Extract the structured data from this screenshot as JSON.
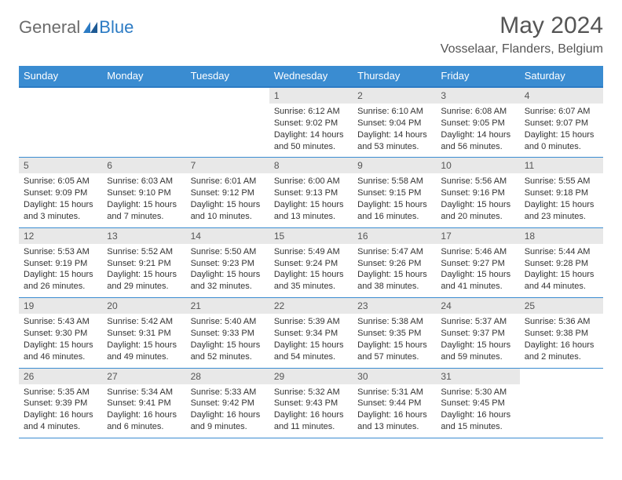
{
  "logo": {
    "general": "General",
    "blue": "Blue"
  },
  "title": "May 2024",
  "location": "Vosselaar, Flanders, Belgium",
  "dow": [
    "Sunday",
    "Monday",
    "Tuesday",
    "Wednesday",
    "Thursday",
    "Friday",
    "Saturday"
  ],
  "colors": {
    "header_bar": "#3a8cd1",
    "header_border": "#2c7bc4",
    "day_num_bg": "#e8e8e8",
    "text": "#333333",
    "title_text": "#555555",
    "logo_gray": "#6b6b6b",
    "logo_blue": "#2c7bc4"
  },
  "weeks": [
    [
      {
        "empty": true
      },
      {
        "empty": true
      },
      {
        "empty": true
      },
      {
        "n": "1",
        "sr": "Sunrise: 6:12 AM",
        "ss": "Sunset: 9:02 PM",
        "dl1": "Daylight: 14 hours",
        "dl2": "and 50 minutes."
      },
      {
        "n": "2",
        "sr": "Sunrise: 6:10 AM",
        "ss": "Sunset: 9:04 PM",
        "dl1": "Daylight: 14 hours",
        "dl2": "and 53 minutes."
      },
      {
        "n": "3",
        "sr": "Sunrise: 6:08 AM",
        "ss": "Sunset: 9:05 PM",
        "dl1": "Daylight: 14 hours",
        "dl2": "and 56 minutes."
      },
      {
        "n": "4",
        "sr": "Sunrise: 6:07 AM",
        "ss": "Sunset: 9:07 PM",
        "dl1": "Daylight: 15 hours",
        "dl2": "and 0 minutes."
      }
    ],
    [
      {
        "n": "5",
        "sr": "Sunrise: 6:05 AM",
        "ss": "Sunset: 9:09 PM",
        "dl1": "Daylight: 15 hours",
        "dl2": "and 3 minutes."
      },
      {
        "n": "6",
        "sr": "Sunrise: 6:03 AM",
        "ss": "Sunset: 9:10 PM",
        "dl1": "Daylight: 15 hours",
        "dl2": "and 7 minutes."
      },
      {
        "n": "7",
        "sr": "Sunrise: 6:01 AM",
        "ss": "Sunset: 9:12 PM",
        "dl1": "Daylight: 15 hours",
        "dl2": "and 10 minutes."
      },
      {
        "n": "8",
        "sr": "Sunrise: 6:00 AM",
        "ss": "Sunset: 9:13 PM",
        "dl1": "Daylight: 15 hours",
        "dl2": "and 13 minutes."
      },
      {
        "n": "9",
        "sr": "Sunrise: 5:58 AM",
        "ss": "Sunset: 9:15 PM",
        "dl1": "Daylight: 15 hours",
        "dl2": "and 16 minutes."
      },
      {
        "n": "10",
        "sr": "Sunrise: 5:56 AM",
        "ss": "Sunset: 9:16 PM",
        "dl1": "Daylight: 15 hours",
        "dl2": "and 20 minutes."
      },
      {
        "n": "11",
        "sr": "Sunrise: 5:55 AM",
        "ss": "Sunset: 9:18 PM",
        "dl1": "Daylight: 15 hours",
        "dl2": "and 23 minutes."
      }
    ],
    [
      {
        "n": "12",
        "sr": "Sunrise: 5:53 AM",
        "ss": "Sunset: 9:19 PM",
        "dl1": "Daylight: 15 hours",
        "dl2": "and 26 minutes."
      },
      {
        "n": "13",
        "sr": "Sunrise: 5:52 AM",
        "ss": "Sunset: 9:21 PM",
        "dl1": "Daylight: 15 hours",
        "dl2": "and 29 minutes."
      },
      {
        "n": "14",
        "sr": "Sunrise: 5:50 AM",
        "ss": "Sunset: 9:23 PM",
        "dl1": "Daylight: 15 hours",
        "dl2": "and 32 minutes."
      },
      {
        "n": "15",
        "sr": "Sunrise: 5:49 AM",
        "ss": "Sunset: 9:24 PM",
        "dl1": "Daylight: 15 hours",
        "dl2": "and 35 minutes."
      },
      {
        "n": "16",
        "sr": "Sunrise: 5:47 AM",
        "ss": "Sunset: 9:26 PM",
        "dl1": "Daylight: 15 hours",
        "dl2": "and 38 minutes."
      },
      {
        "n": "17",
        "sr": "Sunrise: 5:46 AM",
        "ss": "Sunset: 9:27 PM",
        "dl1": "Daylight: 15 hours",
        "dl2": "and 41 minutes."
      },
      {
        "n": "18",
        "sr": "Sunrise: 5:44 AM",
        "ss": "Sunset: 9:28 PM",
        "dl1": "Daylight: 15 hours",
        "dl2": "and 44 minutes."
      }
    ],
    [
      {
        "n": "19",
        "sr": "Sunrise: 5:43 AM",
        "ss": "Sunset: 9:30 PM",
        "dl1": "Daylight: 15 hours",
        "dl2": "and 46 minutes."
      },
      {
        "n": "20",
        "sr": "Sunrise: 5:42 AM",
        "ss": "Sunset: 9:31 PM",
        "dl1": "Daylight: 15 hours",
        "dl2": "and 49 minutes."
      },
      {
        "n": "21",
        "sr": "Sunrise: 5:40 AM",
        "ss": "Sunset: 9:33 PM",
        "dl1": "Daylight: 15 hours",
        "dl2": "and 52 minutes."
      },
      {
        "n": "22",
        "sr": "Sunrise: 5:39 AM",
        "ss": "Sunset: 9:34 PM",
        "dl1": "Daylight: 15 hours",
        "dl2": "and 54 minutes."
      },
      {
        "n": "23",
        "sr": "Sunrise: 5:38 AM",
        "ss": "Sunset: 9:35 PM",
        "dl1": "Daylight: 15 hours",
        "dl2": "and 57 minutes."
      },
      {
        "n": "24",
        "sr": "Sunrise: 5:37 AM",
        "ss": "Sunset: 9:37 PM",
        "dl1": "Daylight: 15 hours",
        "dl2": "and 59 minutes."
      },
      {
        "n": "25",
        "sr": "Sunrise: 5:36 AM",
        "ss": "Sunset: 9:38 PM",
        "dl1": "Daylight: 16 hours",
        "dl2": "and 2 minutes."
      }
    ],
    [
      {
        "n": "26",
        "sr": "Sunrise: 5:35 AM",
        "ss": "Sunset: 9:39 PM",
        "dl1": "Daylight: 16 hours",
        "dl2": "and 4 minutes."
      },
      {
        "n": "27",
        "sr": "Sunrise: 5:34 AM",
        "ss": "Sunset: 9:41 PM",
        "dl1": "Daylight: 16 hours",
        "dl2": "and 6 minutes."
      },
      {
        "n": "28",
        "sr": "Sunrise: 5:33 AM",
        "ss": "Sunset: 9:42 PM",
        "dl1": "Daylight: 16 hours",
        "dl2": "and 9 minutes."
      },
      {
        "n": "29",
        "sr": "Sunrise: 5:32 AM",
        "ss": "Sunset: 9:43 PM",
        "dl1": "Daylight: 16 hours",
        "dl2": "and 11 minutes."
      },
      {
        "n": "30",
        "sr": "Sunrise: 5:31 AM",
        "ss": "Sunset: 9:44 PM",
        "dl1": "Daylight: 16 hours",
        "dl2": "and 13 minutes."
      },
      {
        "n": "31",
        "sr": "Sunrise: 5:30 AM",
        "ss": "Sunset: 9:45 PM",
        "dl1": "Daylight: 16 hours",
        "dl2": "and 15 minutes."
      },
      {
        "empty": true
      }
    ]
  ]
}
